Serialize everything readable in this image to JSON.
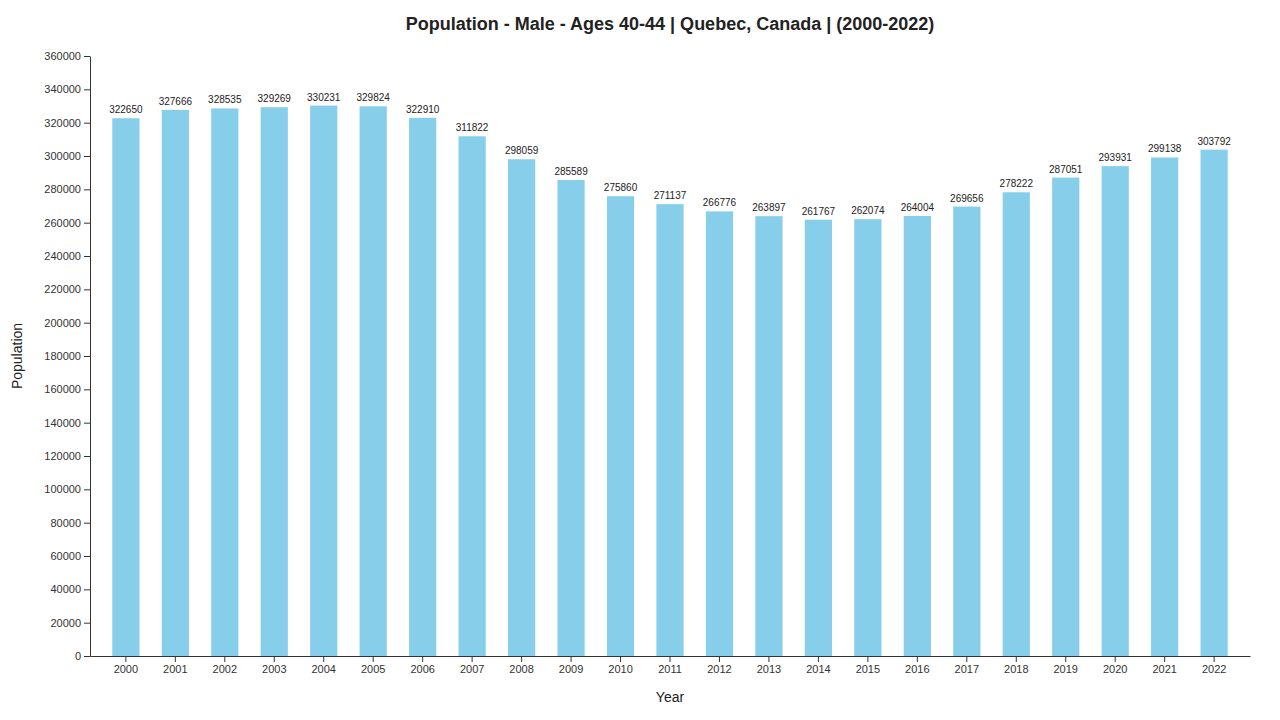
{
  "chart_data": {
    "type": "bar",
    "title": "Population - Male - Ages 40-44 | Quebec, Canada |  (2000-2022)",
    "xlabel": "Year",
    "ylabel": "Population",
    "categories": [
      "2000",
      "2001",
      "2002",
      "2003",
      "2004",
      "2005",
      "2006",
      "2007",
      "2008",
      "2009",
      "2010",
      "2011",
      "2012",
      "2013",
      "2014",
      "2015",
      "2016",
      "2017",
      "2018",
      "2019",
      "2020",
      "2021",
      "2022"
    ],
    "values": [
      322650,
      327666,
      328535,
      329269,
      330231,
      329824,
      322910,
      311822,
      298059,
      285589,
      275860,
      271137,
      266776,
      263897,
      261767,
      262074,
      264004,
      269656,
      278222,
      287051,
      293931,
      299138,
      303792
    ],
    "color": "#87CEEB",
    "ylim": [
      0,
      360000
    ],
    "yticks": [
      0,
      20000,
      40000,
      60000,
      80000,
      100000,
      120000,
      140000,
      160000,
      180000,
      200000,
      220000,
      240000,
      260000,
      280000,
      300000,
      320000,
      340000,
      360000
    ],
    "grid": false,
    "data_labels": true
  }
}
